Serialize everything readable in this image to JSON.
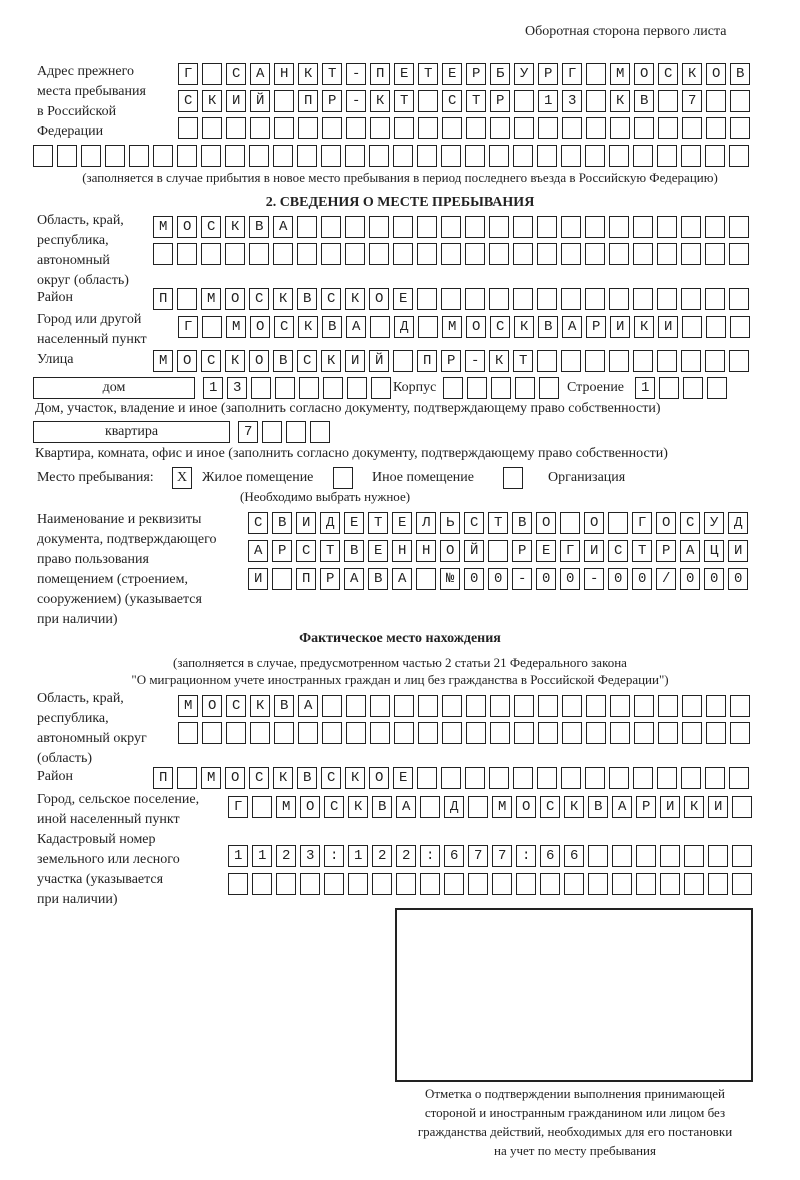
{
  "header": "Оборотная сторона первого листа",
  "prev_address": {
    "label": [
      "Адрес прежнего",
      "места пребывания",
      "в Российской",
      "Федерации"
    ],
    "rows": [
      "Г САНКТ-ПЕТЕРБУРГ МОСКОВ",
      "СКИЙ ПР-КТ СТР 13 КВ 7",
      "",
      ""
    ],
    "note": "(заполняется в случае прибытия в новое место пребывания в период последнего въезда в Российскую Федерацию)"
  },
  "section2": {
    "title": "2. СВЕДЕНИЯ О МЕСТЕ ПРЕБЫВАНИЯ",
    "region_label": [
      "Область, край,",
      "республика,",
      "автономный",
      "округ (область)"
    ],
    "region_rows": [
      "МОСКВА",
      ""
    ],
    "district_label": "Район",
    "district": "П МОСКВСКОЕ",
    "city_label": [
      "Город или другой",
      "населенный пункт"
    ],
    "city": "Г МОСКВА Д МОСКВАРИКИ",
    "street_label": "Улица",
    "street": "МОСКОВСКИЙ ПР-КТ",
    "house_type": "дом",
    "house": "13",
    "korpus_label": "Корпус",
    "korpus": "",
    "building_label": "Строение",
    "building": "1",
    "house_note": "Дом, участок, владение и иное (заполнить согласно документу, подтверждающему право собственности)",
    "flat_type": "квартира",
    "flat": "7",
    "flat_note": "Квартира, комната, офис и иное (заполнить согласно документу, подтверждающему право собственности)",
    "stay_label": "Место пребывания:",
    "options": [
      {
        "label": "Жилое помещение",
        "mark": "X"
      },
      {
        "label": "Иное помещение",
        "mark": ""
      },
      {
        "label": "Организация",
        "mark": ""
      }
    ],
    "options_note": "(Необходимо выбрать нужное)",
    "doc_label": [
      "Наименование и реквизиты",
      "документа, подтверждающего",
      "право пользования",
      "помещением (строением,",
      "сооружением) (указывается",
      "при наличии)"
    ],
    "doc_rows": [
      "СВИДЕТЕЛЬСТВО О ГОСУД",
      "АРСТВЕННОЙ РЕГИСТРАЦИ",
      "И ПРАВА №00-00-00/000"
    ]
  },
  "actual": {
    "title": "Фактическое место нахождения",
    "note": [
      "(заполняется в случае, предусмотренном частью 2 статьи 21 Федерального закона",
      "\"О миграционном учете иностранных граждан и лиц без гражданства в Российской Федерации\")"
    ],
    "region_label": [
      "Область, край,",
      "республика,",
      "автономный округ",
      "(область)"
    ],
    "region_rows": [
      "МОСКВА",
      ""
    ],
    "district_label": "Район",
    "district": "П МОСКВСКОЕ",
    "city_label": [
      "Город, сельское поселение,",
      "иной населенный пункт"
    ],
    "city": "Г МОСКВА Д МОСКВАРИКИ",
    "cadastre_label": [
      "Кадастровый номер",
      "земельного или лесного",
      "участка (указывается",
      "при наличии)"
    ],
    "cadastre_rows": [
      "1123:122:677:66",
      ""
    ]
  },
  "stamp_caption": [
    "Отметка о подтверждении выполнения принимающей",
    "стороной и иностранным гражданином или лицом без",
    "гражданства действий, необходимых для его постановки",
    "на учет по месту пребывания"
  ]
}
